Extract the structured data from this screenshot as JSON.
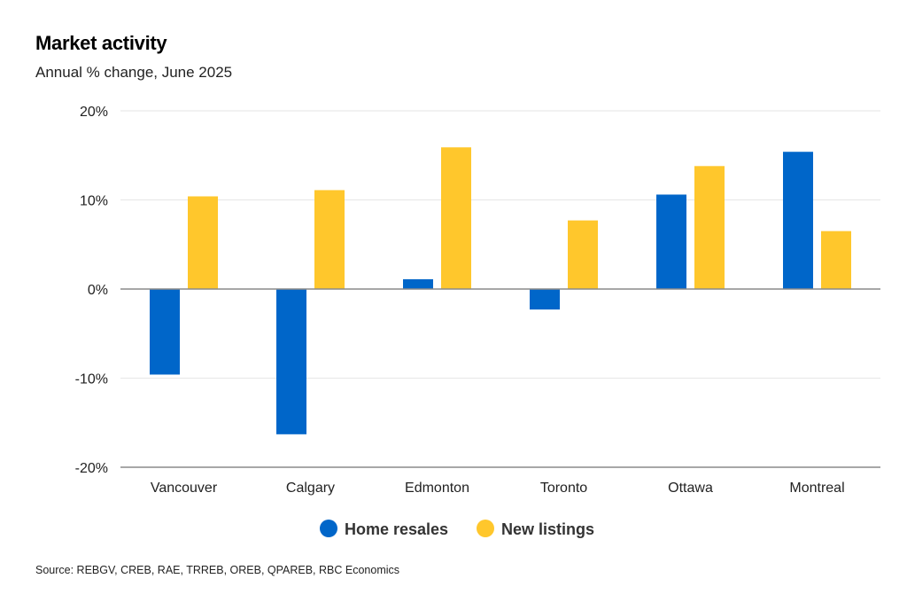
{
  "title": "Market activity",
  "subtitle": "Annual % change, June 2025",
  "source": "Source: REBGV, CREB, RAE, TRREB, OREB, QPAREB, RBC Economics",
  "colors": {
    "home_resales": "#0066c9",
    "new_listings": "#ffc72c",
    "grid": "#e6e6e6",
    "axis": "#8a8a8a"
  },
  "chart_data": {
    "type": "bar",
    "title": "Market activity",
    "subtitle": "Annual % change, June 2025",
    "categories": [
      "Vancouver",
      "Calgary",
      "Edmonton",
      "Toronto",
      "Ottawa",
      "Montreal"
    ],
    "series": [
      {
        "name": "Home resales",
        "values": [
          -9.6,
          -16.3,
          1.1,
          -2.3,
          10.6,
          15.4
        ]
      },
      {
        "name": "New listings",
        "values": [
          10.4,
          11.1,
          15.9,
          7.7,
          13.8,
          6.5
        ]
      }
    ],
    "yticks": [
      "20%",
      "10%",
      "0%",
      "-10%",
      "-20%"
    ],
    "ytick_values": [
      20,
      10,
      0,
      -10,
      -20
    ],
    "ylim": [
      -20,
      20
    ],
    "grid": true,
    "legend": "bottom-center",
    "xlabel": "",
    "ylabel": ""
  }
}
